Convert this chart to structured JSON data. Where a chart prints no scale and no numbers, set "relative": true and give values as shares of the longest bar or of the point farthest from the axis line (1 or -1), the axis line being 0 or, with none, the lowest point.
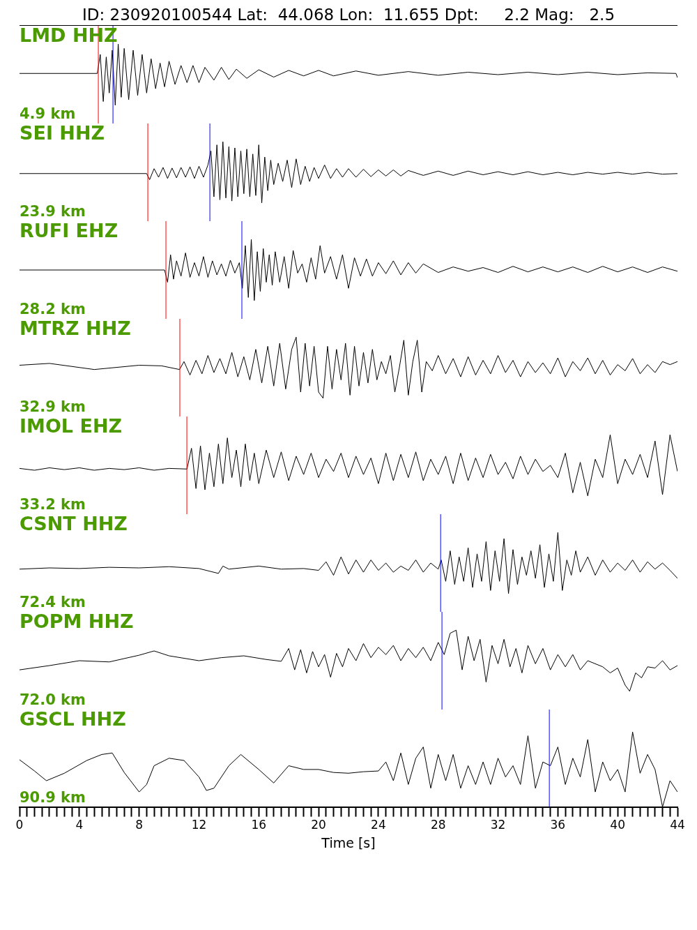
{
  "chart_data": [
    {
      "type": "line",
      "title": "ID: 230920100544 Lat:  44.068 Lon:  11.655 Dpt:     2.2 Mag:   2.5",
      "annotations": [
        "LMD HHZ",
        "4.9 km"
      ],
      "relative": true,
      "tick_labels": false,
      "marker": "none",
      "xlim": [
        0,
        44
      ],
      "series": [
        {
          "color": "#000000",
          "x": [
            0,
            5.2,
            5.4,
            5.6,
            5.8,
            6,
            6.2,
            6.4,
            6.6,
            6.8,
            7,
            7.3,
            7.6,
            7.9,
            8.2,
            8.5,
            8.8,
            9.1,
            9.4,
            9.7,
            10,
            10.4,
            10.8,
            11.2,
            11.6,
            12,
            12.4,
            13,
            13.5,
            14,
            14.5,
            15.2,
            16,
            17,
            18,
            19,
            20,
            21,
            22.5,
            24,
            26,
            28,
            30,
            32,
            34,
            36,
            38,
            40,
            42,
            43.9,
            44
          ],
          "values": [
            0.52,
            0.52,
            0.83,
            0.06,
            0.79,
            0.2,
            0.9,
            0,
            1,
            0.13,
            0.93,
            0.09,
            0.9,
            0.16,
            0.83,
            0.2,
            0.76,
            0.27,
            0.69,
            0.3,
            0.72,
            0.34,
            0.65,
            0.37,
            0.65,
            0.37,
            0.62,
            0.41,
            0.62,
            0.42,
            0.59,
            0.44,
            0.58,
            0.46,
            0.57,
            0.48,
            0.57,
            0.48,
            0.56,
            0.49,
            0.55,
            0.49,
            0.54,
            0.5,
            0.54,
            0.5,
            0.54,
            0.5,
            0.53,
            0.52,
            0.45
          ]
        }
      ],
      "ref_lines": [
        {
          "axis": "x",
          "value": 5.27,
          "color": "#ff0000"
        },
        {
          "axis": "x",
          "value": 6.25,
          "color": "#0000ff"
        }
      ]
    },
    {
      "type": "line",
      "annotations": [
        "SEI HHZ",
        "23.9 km"
      ],
      "relative": true,
      "tick_labels": false,
      "marker": "none",
      "xlim": [
        0,
        44
      ],
      "series": [
        {
          "color": "#000000",
          "x": [
            0,
            8.5,
            8.7,
            9,
            9.3,
            9.6,
            9.9,
            10.2,
            10.5,
            10.8,
            11.1,
            11.4,
            11.7,
            12,
            12.3,
            12.6,
            12.8,
            13,
            13.2,
            13.4,
            13.6,
            13.8,
            14,
            14.2,
            14.4,
            14.6,
            14.8,
            15,
            15.2,
            15.4,
            15.6,
            15.8,
            16,
            16.2,
            16.4,
            16.6,
            16.8,
            17,
            17.3,
            17.6,
            17.9,
            18.2,
            18.5,
            18.8,
            19.1,
            19.4,
            19.7,
            20,
            20.4,
            20.8,
            21.2,
            21.6,
            22,
            22.5,
            23,
            23.5,
            24,
            24.5,
            25,
            25.5,
            26,
            27,
            28,
            29,
            30,
            31,
            32,
            33,
            34,
            35,
            36,
            37,
            38,
            39,
            40,
            41,
            42,
            43,
            44
          ],
          "values": [
            0.48,
            0.48,
            0.38,
            0.56,
            0.42,
            0.58,
            0.4,
            0.57,
            0.41,
            0.58,
            0.42,
            0.59,
            0.4,
            0.6,
            0.42,
            0.62,
            0.85,
            0.1,
            0.95,
            0.05,
            1,
            0.08,
            0.92,
            0.03,
            0.9,
            0.1,
            0.85,
            0.15,
            0.88,
            0.1,
            0.8,
            0.12,
            0.95,
            0,
            0.75,
            0.2,
            0.7,
            0.3,
            0.65,
            0.35,
            0.7,
            0.25,
            0.72,
            0.3,
            0.6,
            0.35,
            0.58,
            0.4,
            0.62,
            0.4,
            0.56,
            0.42,
            0.56,
            0.42,
            0.55,
            0.43,
            0.54,
            0.44,
            0.54,
            0.44,
            0.53,
            0.45,
            0.52,
            0.45,
            0.52,
            0.46,
            0.51,
            0.46,
            0.51,
            0.46,
            0.5,
            0.46,
            0.5,
            0.47,
            0.5,
            0.47,
            0.5,
            0.47,
            0.48
          ]
        }
      ],
      "ref_lines": [
        {
          "axis": "x",
          "value": 8.58,
          "color": "#ff0000"
        },
        {
          "axis": "x",
          "value": 12.73,
          "color": "#0000ff"
        }
      ]
    },
    {
      "type": "line",
      "annotations": [
        "RUFI EHZ",
        "28.2 km"
      ],
      "relative": true,
      "tick_labels": false,
      "marker": "none",
      "xlim": [
        0,
        44
      ],
      "series": [
        {
          "color": "#000000",
          "x": [
            0,
            9.7,
            9.9,
            10.1,
            10.3,
            10.5,
            10.8,
            11.1,
            11.4,
            11.7,
            12,
            12.3,
            12.6,
            12.9,
            13.2,
            13.5,
            13.8,
            14.1,
            14.4,
            14.7,
            14.9,
            15.1,
            15.3,
            15.5,
            15.7,
            15.9,
            16.1,
            16.3,
            16.5,
            16.7,
            16.9,
            17.1,
            17.4,
            17.7,
            18,
            18.3,
            18.6,
            18.9,
            19.2,
            19.5,
            19.8,
            20.1,
            20.4,
            20.8,
            21.2,
            21.6,
            22,
            22.4,
            22.8,
            23.2,
            23.6,
            24,
            24.5,
            25,
            25.5,
            26,
            26.5,
            27,
            28,
            29,
            30,
            31,
            32,
            33,
            34,
            35,
            36,
            37,
            38,
            39,
            40,
            41,
            42,
            43,
            44
          ],
          "values": [
            0.5,
            0.5,
            0.3,
            0.75,
            0.35,
            0.65,
            0.4,
            0.78,
            0.38,
            0.62,
            0.4,
            0.72,
            0.38,
            0.65,
            0.42,
            0.6,
            0.4,
            0.66,
            0.45,
            0.62,
            0.2,
            0.9,
            0.05,
            1,
            0,
            0.8,
            0.15,
            0.85,
            0.3,
            0.75,
            0.25,
            0.8,
            0.3,
            0.72,
            0.2,
            0.82,
            0.45,
            0.6,
            0.3,
            0.7,
            0.35,
            0.9,
            0.45,
            0.72,
            0.35,
            0.75,
            0.2,
            0.7,
            0.4,
            0.68,
            0.4,
            0.62,
            0.44,
            0.65,
            0.42,
            0.62,
            0.45,
            0.6,
            0.46,
            0.55,
            0.48,
            0.54,
            0.46,
            0.56,
            0.47,
            0.55,
            0.47,
            0.55,
            0.46,
            0.56,
            0.47,
            0.55,
            0.46,
            0.55,
            0.48
          ]
        }
      ],
      "ref_lines": [
        {
          "axis": "x",
          "value": 9.79,
          "color": "#ff0000"
        },
        {
          "axis": "x",
          "value": 14.87,
          "color": "#0000ff"
        }
      ]
    },
    {
      "type": "line",
      "annotations": [
        "MTRZ HHZ",
        "32.9 km"
      ],
      "relative": true,
      "tick_labels": false,
      "marker": "none",
      "xlim": [
        0,
        44
      ],
      "series": [
        {
          "color": "#000000",
          "x": [
            0,
            2,
            5,
            8,
            9.5,
            10.7,
            11,
            11.4,
            11.8,
            12.2,
            12.6,
            13,
            13.4,
            13.8,
            14.2,
            14.6,
            15,
            15.4,
            15.8,
            16.2,
            16.6,
            17,
            17.4,
            17.8,
            18.2,
            18.5,
            18.8,
            19.1,
            19.4,
            19.7,
            20,
            20.3,
            20.6,
            20.9,
            21.2,
            21.5,
            21.8,
            22.1,
            22.4,
            22.7,
            23,
            23.3,
            23.6,
            23.9,
            24.2,
            24.5,
            24.8,
            25.1,
            25.4,
            25.7,
            26,
            26.3,
            26.6,
            26.9,
            27.2,
            27.6,
            28,
            28.5,
            29,
            29.5,
            30,
            30.5,
            31,
            31.5,
            32,
            32.5,
            33,
            33.5,
            34,
            34.5,
            35,
            35.5,
            36,
            36.5,
            37,
            37.5,
            38,
            38.5,
            39,
            39.5,
            40,
            40.5,
            41,
            41.5,
            42,
            42.5,
            43,
            43.5,
            44
          ],
          "values": [
            0.54,
            0.57,
            0.47,
            0.54,
            0.53,
            0.47,
            0.6,
            0.38,
            0.62,
            0.4,
            0.7,
            0.42,
            0.65,
            0.4,
            0.75,
            0.35,
            0.68,
            0.3,
            0.8,
            0.25,
            0.85,
            0.2,
            0.9,
            0.15,
            0.8,
            1,
            0.1,
            0.9,
            0.2,
            0.85,
            0.1,
            0,
            0.85,
            0.15,
            0.8,
            0.3,
            0.9,
            0.05,
            0.85,
            0.2,
            0.75,
            0.25,
            0.8,
            0.3,
            0.6,
            0.4,
            0.7,
            0.1,
            0.5,
            0.95,
            0.05,
            0.6,
            0.95,
            0.1,
            0.6,
            0.45,
            0.7,
            0.4,
            0.65,
            0.35,
            0.68,
            0.38,
            0.62,
            0.4,
            0.7,
            0.42,
            0.62,
            0.35,
            0.6,
            0.42,
            0.58,
            0.4,
            0.66,
            0.35,
            0.6,
            0.45,
            0.66,
            0.4,
            0.62,
            0.38,
            0.55,
            0.45,
            0.65,
            0.4,
            0.55,
            0.42,
            0.6,
            0.55,
            0.6
          ]
        }
      ],
      "ref_lines": [
        {
          "axis": "x",
          "value": 10.72,
          "color": "#ff0000"
        }
      ]
    },
    {
      "type": "line",
      "annotations": [
        "IMOL EHZ",
        "33.2 km"
      ],
      "relative": true,
      "tick_labels": false,
      "marker": "none",
      "xlim": [
        0,
        44
      ],
      "series": [
        {
          "color": "#000000",
          "x": [
            0,
            1,
            2,
            3,
            4,
            5,
            6,
            7,
            8,
            9,
            10,
            11.2,
            11.5,
            11.8,
            12.1,
            12.4,
            12.7,
            13,
            13.3,
            13.6,
            13.9,
            14.2,
            14.5,
            14.8,
            15.1,
            15.4,
            15.7,
            16,
            16.5,
            17,
            17.5,
            18,
            18.5,
            19,
            19.5,
            20,
            20.5,
            21,
            21.5,
            22,
            22.5,
            23,
            23.5,
            24,
            24.5,
            25,
            25.5,
            26,
            26.5,
            27,
            27.5,
            28,
            28.5,
            29,
            29.5,
            30,
            30.5,
            31,
            31.5,
            32,
            32.5,
            33,
            33.5,
            34,
            34.5,
            35,
            35.5,
            36,
            36.5,
            37,
            37.5,
            38,
            38.5,
            39,
            39.5,
            40,
            40.5,
            41,
            41.5,
            42,
            42.5,
            43,
            43.5,
            44
          ],
          "values": [
            0.45,
            0.42,
            0.46,
            0.43,
            0.46,
            0.42,
            0.45,
            0.43,
            0.46,
            0.42,
            0.45,
            0.44,
            0.78,
            0.12,
            0.82,
            0.1,
            0.7,
            0.15,
            0.85,
            0.2,
            0.95,
            0.3,
            0.75,
            0.15,
            0.85,
            0.25,
            0.7,
            0.2,
            0.75,
            0.3,
            0.72,
            0.25,
            0.65,
            0.35,
            0.7,
            0.3,
            0.6,
            0.4,
            0.7,
            0.3,
            0.65,
            0.35,
            0.62,
            0.2,
            0.7,
            0.25,
            0.68,
            0.3,
            0.72,
            0.25,
            0.6,
            0.35,
            0.65,
            0.2,
            0.7,
            0.25,
            0.62,
            0.3,
            0.68,
            0.35,
            0.55,
            0.28,
            0.65,
            0.35,
            0.6,
            0.4,
            0.5,
            0.3,
            0.7,
            0.05,
            0.55,
            0,
            0.6,
            0.3,
            1,
            0.2,
            0.6,
            0.35,
            0.68,
            0.3,
            0.9,
            0.02,
            1,
            0.4
          ]
        }
      ],
      "ref_lines": [
        {
          "axis": "x",
          "value": 11.19,
          "color": "#ff0000"
        }
      ]
    },
    {
      "type": "line",
      "annotations": [
        "CSNT HHZ",
        "72.4 km"
      ],
      "relative": true,
      "tick_labels": false,
      "marker": "none",
      "xlim": [
        0,
        44
      ],
      "series": [
        {
          "color": "#000000",
          "x": [
            0,
            2,
            4,
            6,
            8,
            10,
            12,
            13.3,
            13.6,
            14,
            16,
            17.5,
            19,
            20,
            20.5,
            21,
            21.5,
            22,
            22.5,
            23,
            23.5,
            24,
            24.5,
            25,
            25.5,
            26,
            26.5,
            27,
            27.5,
            28,
            28.2,
            28.5,
            28.8,
            29.1,
            29.4,
            29.7,
            30,
            30.3,
            30.6,
            30.9,
            31.2,
            31.5,
            31.8,
            32.1,
            32.4,
            32.7,
            33,
            33.3,
            33.6,
            33.9,
            34.2,
            34.5,
            34.8,
            35.1,
            35.4,
            35.7,
            36,
            36.3,
            36.6,
            36.9,
            37.2,
            37.5,
            38,
            38.5,
            39,
            39.5,
            40,
            40.5,
            41,
            41.5,
            42,
            42.5,
            43,
            43.5,
            44
          ],
          "values": [
            0.4,
            0.42,
            0.41,
            0.43,
            0.42,
            0.44,
            0.41,
            0.33,
            0.45,
            0.4,
            0.45,
            0.4,
            0.41,
            0.38,
            0.52,
            0.3,
            0.6,
            0.32,
            0.55,
            0.35,
            0.55,
            0.38,
            0.5,
            0.35,
            0.45,
            0.38,
            0.55,
            0.35,
            0.5,
            0.4,
            0.55,
            0.2,
            0.7,
            0.15,
            0.6,
            0.2,
            0.75,
            0.1,
            0.65,
            0.2,
            0.85,
            0.05,
            0.7,
            0.2,
            0.9,
            0,
            0.72,
            0.15,
            0.6,
            0.3,
            0.7,
            0.25,
            0.8,
            0.1,
            0.65,
            0.2,
            1,
            0.05,
            0.55,
            0.3,
            0.7,
            0.35,
            0.6,
            0.3,
            0.55,
            0.35,
            0.5,
            0.38,
            0.55,
            0.35,
            0.52,
            0.4,
            0.5,
            0.38,
            0.25
          ]
        }
      ],
      "ref_lines": [
        {
          "axis": "x",
          "value": 28.16,
          "color": "#0000ff"
        }
      ]
    },
    {
      "type": "line",
      "annotations": [
        "POPM HHZ",
        "72.0 km"
      ],
      "relative": true,
      "tick_labels": false,
      "marker": "none",
      "xlim": [
        0,
        44
      ],
      "series": [
        {
          "color": "#000000",
          "x": [
            0,
            2,
            4,
            6,
            8,
            9,
            10,
            12,
            13.5,
            15,
            16.5,
            17.5,
            18,
            18.4,
            18.8,
            19.2,
            19.6,
            20,
            20.4,
            20.8,
            21.2,
            21.6,
            22,
            22.5,
            23,
            23.5,
            24,
            24.5,
            25,
            25.5,
            26,
            26.5,
            27,
            27.5,
            28,
            28.4,
            28.8,
            29.2,
            29.6,
            30,
            30.4,
            30.8,
            31.2,
            31.6,
            32,
            32.4,
            32.8,
            33.2,
            33.6,
            34,
            34.5,
            35,
            35.5,
            36,
            36.5,
            37,
            37.5,
            38,
            38.5,
            39,
            39.5,
            40,
            40.5,
            40.8,
            41.2,
            41.6,
            42,
            42.5,
            43,
            43.5,
            44
          ],
          "values": [
            0.35,
            0.42,
            0.5,
            0.48,
            0.59,
            0.66,
            0.58,
            0.5,
            0.55,
            0.58,
            0.52,
            0.49,
            0.7,
            0.35,
            0.68,
            0.3,
            0.65,
            0.4,
            0.6,
            0.23,
            0.62,
            0.4,
            0.7,
            0.5,
            0.78,
            0.55,
            0.72,
            0.6,
            0.75,
            0.5,
            0.7,
            0.55,
            0.72,
            0.5,
            0.8,
            0.6,
            0.95,
            1,
            0.35,
            0.9,
            0.5,
            0.85,
            0.15,
            0.75,
            0.45,
            0.85,
            0.4,
            0.7,
            0.3,
            0.75,
            0.45,
            0.7,
            0.35,
            0.6,
            0.4,
            0.6,
            0.35,
            0.5,
            0.45,
            0.4,
            0.3,
            0.38,
            0.1,
            0,
            0.3,
            0.22,
            0.4,
            0.38,
            0.5,
            0.35,
            0.42
          ]
        }
      ],
      "ref_lines": [
        {
          "axis": "x",
          "value": 28.25,
          "color": "#0000ff"
        }
      ]
    },
    {
      "type": "line",
      "annotations": [
        "GSCL HHZ",
        "90.9 km"
      ],
      "xlabel": "Time [s]",
      "relative": true,
      "tick_labels": "x",
      "marker": "none",
      "xlim": [
        0,
        44
      ],
      "xticks": [
        0,
        {
          "value": 0.5,
          "label": null
        },
        {
          "value": 1,
          "label": null
        },
        {
          "value": 1.5,
          "label": null
        },
        {
          "value": 2,
          "label": null
        },
        {
          "value": 2.5,
          "label": null
        },
        {
          "value": 3,
          "label": null
        },
        {
          "value": 3.5,
          "label": null
        },
        4,
        {
          "value": 4.5,
          "label": null
        },
        {
          "value": 5,
          "label": null
        },
        {
          "value": 5.5,
          "label": null
        },
        {
          "value": 6,
          "label": null
        },
        {
          "value": 6.5,
          "label": null
        },
        {
          "value": 7,
          "label": null
        },
        {
          "value": 7.5,
          "label": null
        },
        8,
        {
          "value": 8.5,
          "label": null
        },
        {
          "value": 9,
          "label": null
        },
        {
          "value": 9.5,
          "label": null
        },
        {
          "value": 10,
          "label": null
        },
        {
          "value": 10.5,
          "label": null
        },
        {
          "value": 11,
          "label": null
        },
        {
          "value": 11.5,
          "label": null
        },
        12,
        {
          "value": 12.5,
          "label": null
        },
        {
          "value": 13,
          "label": null
        },
        {
          "value": 13.5,
          "label": null
        },
        {
          "value": 14,
          "label": null
        },
        {
          "value": 14.5,
          "label": null
        },
        {
          "value": 15,
          "label": null
        },
        {
          "value": 15.5,
          "label": null
        },
        16,
        {
          "value": 16.5,
          "label": null
        },
        {
          "value": 17,
          "label": null
        },
        {
          "value": 17.5,
          "label": null
        },
        {
          "value": 18,
          "label": null
        },
        {
          "value": 18.5,
          "label": null
        },
        {
          "value": 19,
          "label": null
        },
        {
          "value": 19.5,
          "label": null
        },
        20,
        {
          "value": 20.5,
          "label": null
        },
        {
          "value": 21,
          "label": null
        },
        {
          "value": 21.5,
          "label": null
        },
        {
          "value": 22,
          "label": null
        },
        {
          "value": 22.5,
          "label": null
        },
        {
          "value": 23,
          "label": null
        },
        {
          "value": 23.5,
          "label": null
        },
        24,
        {
          "value": 24.5,
          "label": null
        },
        {
          "value": 25,
          "label": null
        },
        {
          "value": 25.5,
          "label": null
        },
        {
          "value": 26,
          "label": null
        },
        {
          "value": 26.5,
          "label": null
        },
        {
          "value": 27,
          "label": null
        },
        {
          "value": 27.5,
          "label": null
        },
        28,
        {
          "value": 28.5,
          "label": null
        },
        {
          "value": 29,
          "label": null
        },
        {
          "value": 29.5,
          "label": null
        },
        {
          "value": 30,
          "label": null
        },
        {
          "value": 30.5,
          "label": null
        },
        {
          "value": 31,
          "label": null
        },
        {
          "value": 31.5,
          "label": null
        },
        32,
        {
          "value": 32.5,
          "label": null
        },
        {
          "value": 33,
          "label": null
        },
        {
          "value": 33.5,
          "label": null
        },
        {
          "value": 34,
          "label": null
        },
        {
          "value": 34.5,
          "label": null
        },
        {
          "value": 35,
          "label": null
        },
        {
          "value": 35.5,
          "label": null
        },
        36,
        {
          "value": 36.5,
          "label": null
        },
        {
          "value": 37,
          "label": null
        },
        {
          "value": 37.5,
          "label": null
        },
        {
          "value": 38,
          "label": null
        },
        {
          "value": 38.5,
          "label": null
        },
        {
          "value": 39,
          "label": null
        },
        {
          "value": 39.5,
          "label": null
        },
        40,
        {
          "value": 40.5,
          "label": null
        },
        {
          "value": 41,
          "label": null
        },
        {
          "value": 41.5,
          "label": null
        },
        {
          "value": 42,
          "label": null
        },
        {
          "value": 42.5,
          "label": null
        },
        {
          "value": 43,
          "label": null
        },
        {
          "value": 43.5,
          "label": null
        },
        44
      ],
      "series": [
        {
          "color": "#000000",
          "x": [
            0,
            1,
            1.8,
            3,
            4.5,
            5.5,
            6.2,
            7,
            8,
            8.5,
            9,
            10,
            11,
            12,
            12.5,
            13,
            14,
            14.8,
            16,
            17,
            18,
            19,
            20,
            21,
            22,
            23,
            24,
            24.5,
            25,
            25.5,
            26,
            26.5,
            27,
            27.5,
            28,
            28.5,
            29,
            29.5,
            30,
            30.5,
            31,
            31.5,
            32,
            32.5,
            33,
            33.5,
            34,
            34.5,
            35,
            35.5,
            36,
            36.5,
            37,
            37.5,
            38,
            38.5,
            39,
            39.5,
            40,
            40.5,
            41,
            41.5,
            42,
            42.5,
            43,
            43.5,
            44
          ],
          "values": [
            0.63,
            0.48,
            0.35,
            0.45,
            0.62,
            0.7,
            0.72,
            0.46,
            0.2,
            0.3,
            0.55,
            0.65,
            0.62,
            0.4,
            0.22,
            0.25,
            0.55,
            0.7,
            0.5,
            0.32,
            0.55,
            0.5,
            0.5,
            0.46,
            0.45,
            0.47,
            0.48,
            0.6,
            0.35,
            0.72,
            0.3,
            0.65,
            0.8,
            0.25,
            0.7,
            0.35,
            0.7,
            0.25,
            0.55,
            0.3,
            0.6,
            0.3,
            0.65,
            0.4,
            0.55,
            0.3,
            0.95,
            0.25,
            0.6,
            0.55,
            0.8,
            0.3,
            0.65,
            0.4,
            0.9,
            0.2,
            0.6,
            0.35,
            0.5,
            0.2,
            1,
            0.45,
            0.7,
            0.5,
            0,
            0.35,
            0.2
          ]
        }
      ],
      "ref_lines": [
        {
          "axis": "x",
          "value": 35.43,
          "color": "#0000ff"
        }
      ]
    }
  ]
}
